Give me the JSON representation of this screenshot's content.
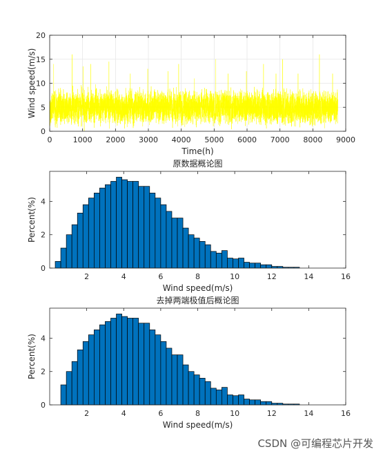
{
  "chart_data": [
    {
      "type": "line",
      "title": "",
      "xlabel": "Time(h)",
      "ylabel": "Wind speed(m/s)",
      "xlim": [
        0,
        9000
      ],
      "ylim": [
        0,
        20
      ],
      "xticks": [
        0,
        1000,
        2000,
        3000,
        4000,
        5000,
        6000,
        7000,
        8000,
        9000
      ],
      "yticks": [
        0,
        5,
        10,
        15,
        20
      ],
      "grid": true,
      "color": "#ffff00",
      "n_points": 8760,
      "series_summary": {
        "mean": 5.0,
        "min": 0.1,
        "max": 16.2
      },
      "peaks": [
        {
          "x": 120,
          "y": 14.0
        },
        {
          "x": 680,
          "y": 16.0
        },
        {
          "x": 1020,
          "y": 13.5
        },
        {
          "x": 1250,
          "y": 14.0
        },
        {
          "x": 1800,
          "y": 14.5
        },
        {
          "x": 2450,
          "y": 12.0
        },
        {
          "x": 2980,
          "y": 13.0
        },
        {
          "x": 3600,
          "y": 12.5
        },
        {
          "x": 3920,
          "y": 14.0
        },
        {
          "x": 4400,
          "y": 11.0
        },
        {
          "x": 5050,
          "y": 15.0
        },
        {
          "x": 5420,
          "y": 12.0
        },
        {
          "x": 5980,
          "y": 12.5
        },
        {
          "x": 6500,
          "y": 14.0
        },
        {
          "x": 6880,
          "y": 12.0
        },
        {
          "x": 7080,
          "y": 15.0
        },
        {
          "x": 7550,
          "y": 12.0
        },
        {
          "x": 8200,
          "y": 16.0
        },
        {
          "x": 8600,
          "y": 12.0
        }
      ]
    },
    {
      "type": "bar",
      "title": "原数据概论图",
      "xlabel": "Wind speed(m/s)",
      "ylabel": "Percent(%)",
      "xlim": [
        0,
        16
      ],
      "ylim": [
        0,
        5.8
      ],
      "xticks": [
        2,
        4,
        6,
        8,
        10,
        12,
        14,
        16
      ],
      "yticks": [
        0,
        2,
        4
      ],
      "bar_color": "#0072bd",
      "bin_width": 0.3,
      "x": [
        0.45,
        0.75,
        1.05,
        1.35,
        1.65,
        1.95,
        2.25,
        2.55,
        2.85,
        3.15,
        3.45,
        3.75,
        4.05,
        4.35,
        4.65,
        4.95,
        5.25,
        5.55,
        5.85,
        6.15,
        6.45,
        6.75,
        7.05,
        7.35,
        7.65,
        7.95,
        8.25,
        8.55,
        8.85,
        9.15,
        9.45,
        9.75,
        10.05,
        10.35,
        10.65,
        10.95,
        11.25,
        11.55,
        11.85,
        12.15,
        12.45,
        12.75,
        13.05,
        13.35
      ],
      "values": [
        0.4,
        1.2,
        2.0,
        2.6,
        3.3,
        3.8,
        4.2,
        4.5,
        4.8,
        5.0,
        5.2,
        5.45,
        5.3,
        5.2,
        5.2,
        4.9,
        4.9,
        4.5,
        4.2,
        3.8,
        3.4,
        3.0,
        3.0,
        2.4,
        2.0,
        1.8,
        1.6,
        1.4,
        1.0,
        0.9,
        1.05,
        0.6,
        0.55,
        0.6,
        0.35,
        0.3,
        0.3,
        0.2,
        0.2,
        0.1,
        0.1,
        0.05,
        0.05,
        0.05
      ]
    },
    {
      "type": "bar",
      "title": "去掉两端极值后概论图",
      "xlabel": "Wind speed(m/s)",
      "ylabel": "Percent(%)",
      "xlim": [
        0,
        16
      ],
      "ylim": [
        0,
        5.8
      ],
      "xticks": [
        2,
        4,
        6,
        8,
        10,
        12,
        14,
        16
      ],
      "yticks": [
        0,
        2,
        4
      ],
      "bar_color": "#0072bd",
      "bin_width": 0.3,
      "x": [
        0.75,
        1.05,
        1.35,
        1.65,
        1.95,
        2.25,
        2.55,
        2.85,
        3.15,
        3.45,
        3.75,
        4.05,
        4.35,
        4.65,
        4.95,
        5.25,
        5.55,
        5.85,
        6.15,
        6.45,
        6.75,
        7.05,
        7.35,
        7.65,
        7.95,
        8.25,
        8.55,
        8.85,
        9.15,
        9.45,
        9.75,
        10.05,
        10.35,
        10.65,
        10.95,
        11.25,
        11.55,
        11.85,
        12.15,
        12.45,
        12.75,
        13.05,
        13.35
      ],
      "values": [
        1.2,
        2.0,
        2.6,
        3.3,
        3.8,
        4.2,
        4.5,
        4.8,
        5.0,
        5.2,
        5.45,
        5.3,
        5.2,
        5.2,
        4.9,
        4.9,
        4.5,
        4.2,
        3.8,
        3.4,
        3.0,
        3.0,
        2.4,
        2.0,
        1.8,
        1.6,
        1.4,
        1.0,
        0.9,
        1.05,
        0.6,
        0.55,
        0.6,
        0.35,
        0.3,
        0.3,
        0.2,
        0.2,
        0.1,
        0.1,
        0.05,
        0.05,
        0.05
      ]
    }
  ],
  "watermark": "CSDN @可编程芯片开发"
}
